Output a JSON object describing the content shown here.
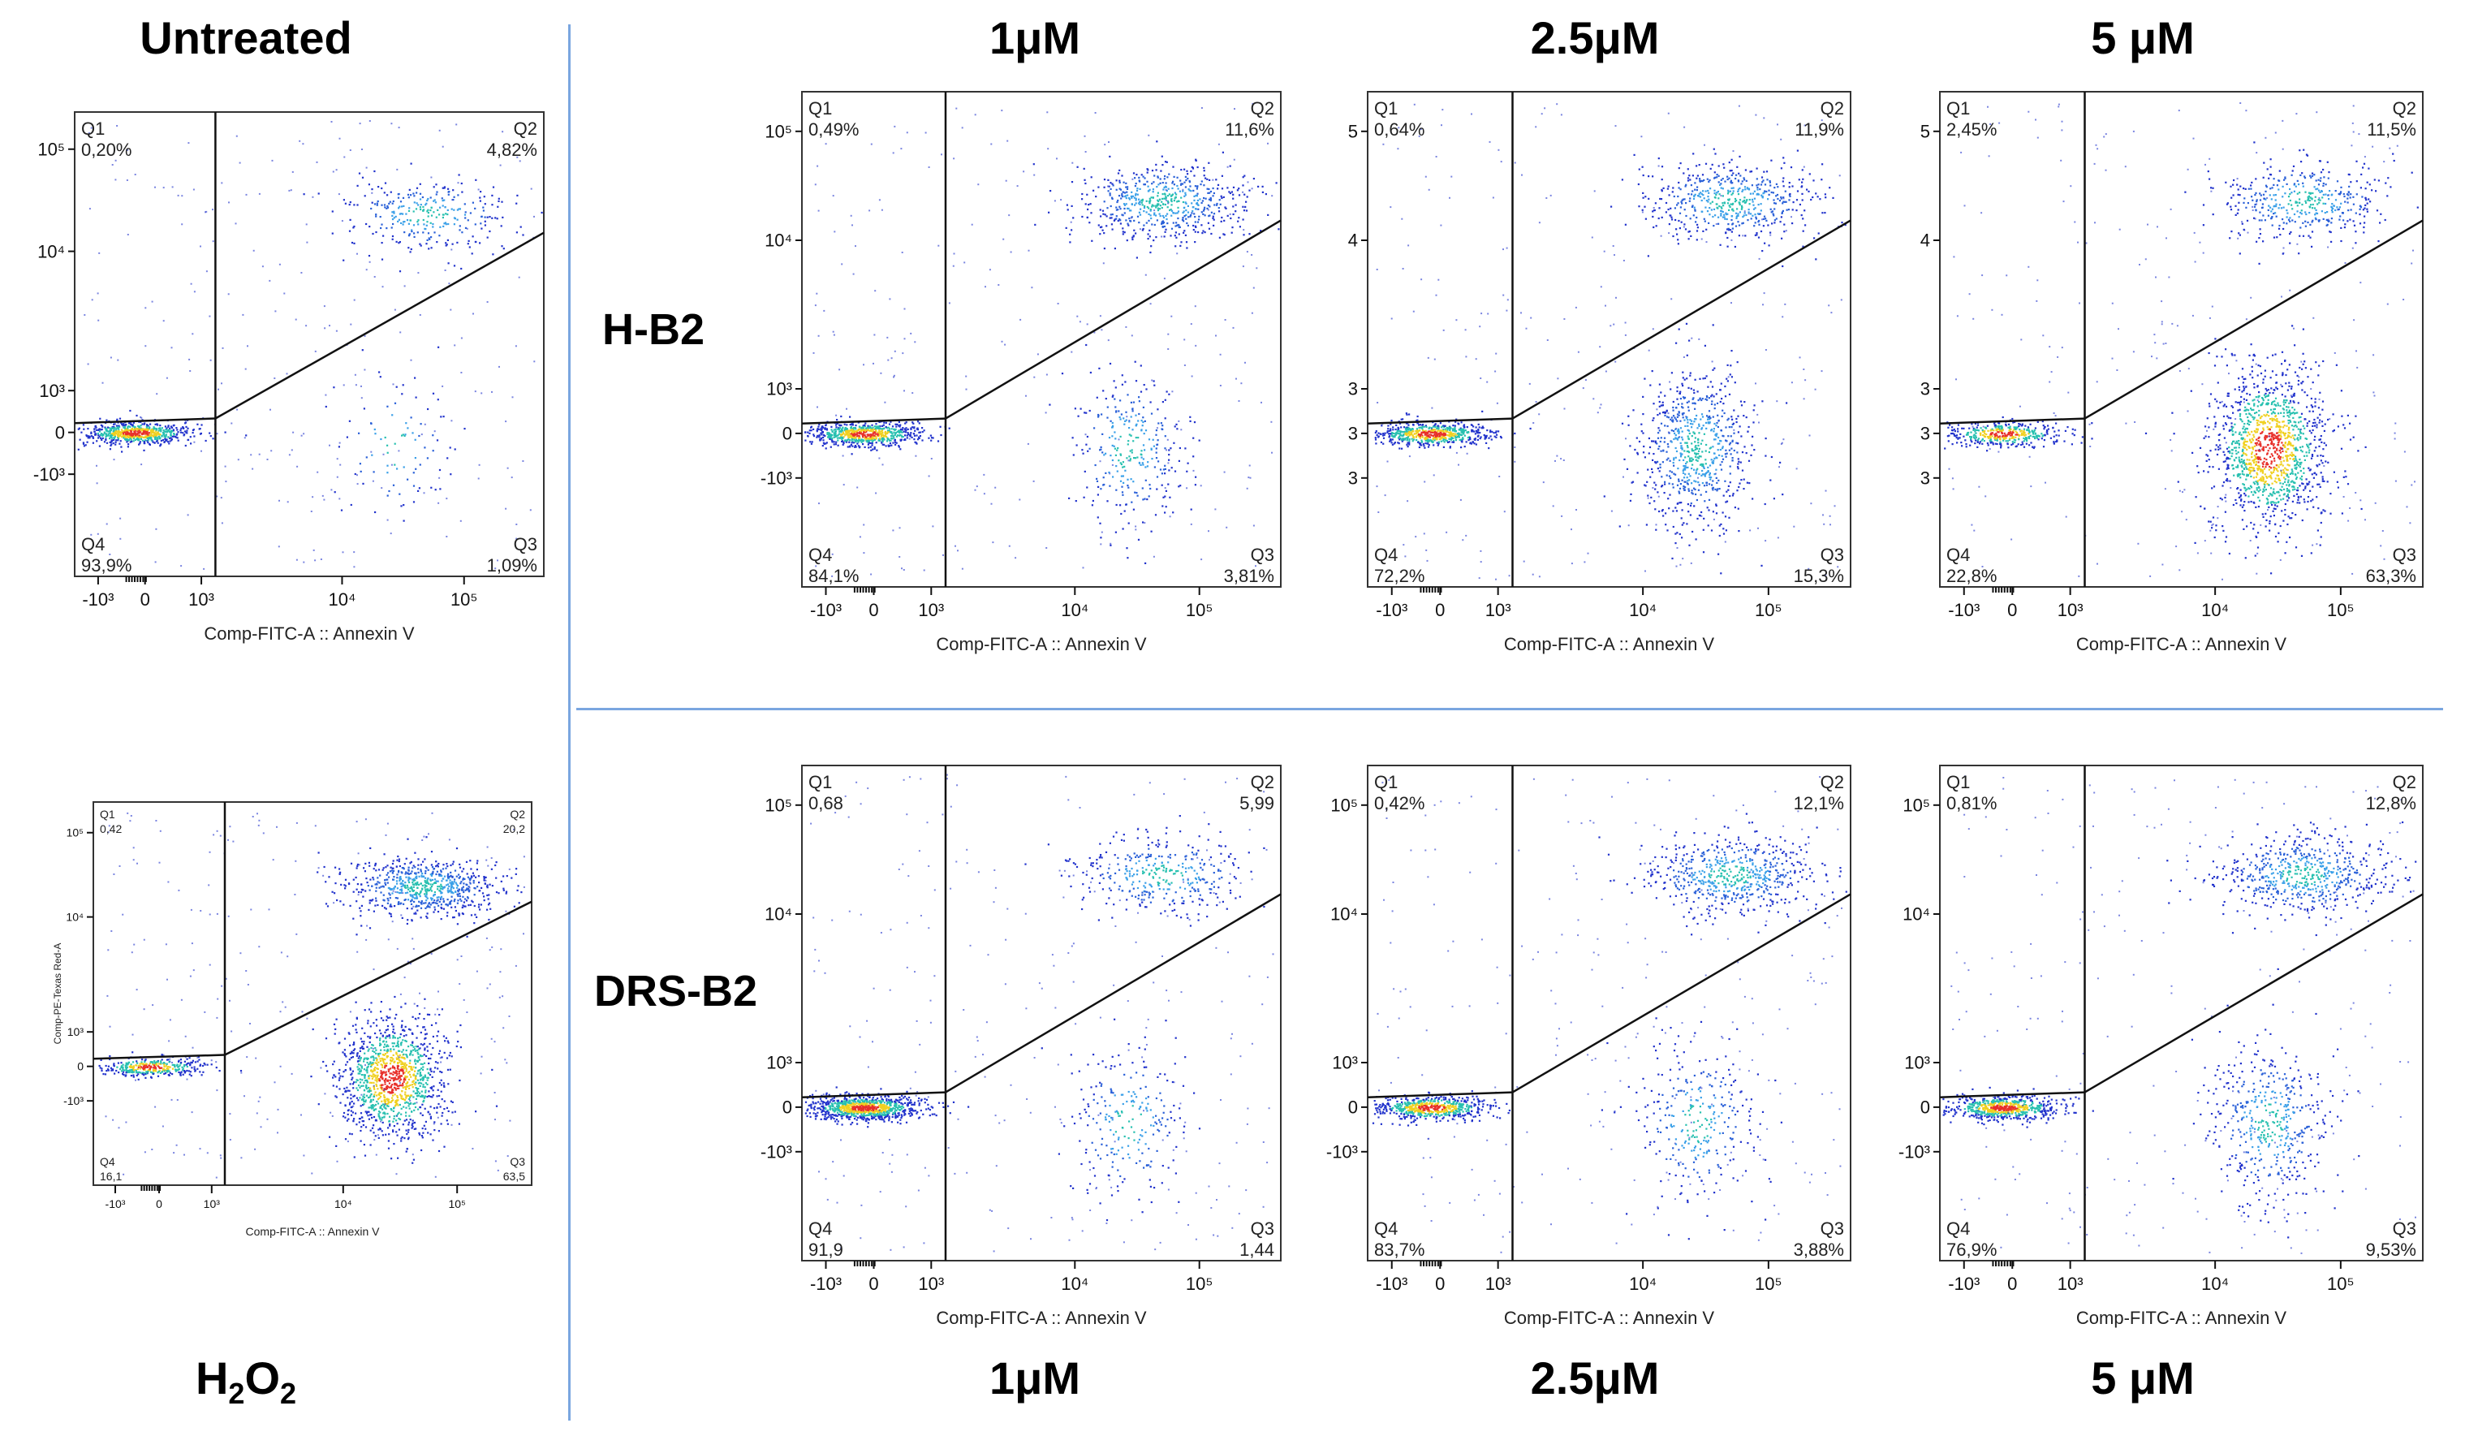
{
  "headers": {
    "untreated": "Untreated",
    "c1_top": "1μM",
    "c2_top": "2.5μM",
    "c3_top": "5 μM",
    "h2o2_main": "H",
    "h2o2_sub1": "2",
    "h2o2_mid": "O",
    "h2o2_sub2": "2",
    "c1_bottom": "1μM",
    "c2_bottom": "2.5μM",
    "c3_bottom": "5 μM"
  },
  "row_labels": {
    "top": "H-B2",
    "bottom": "DRS-B2"
  },
  "colors": {
    "divider": "#7aa6e0",
    "dots": "#2233cc",
    "hot": "#e8302a",
    "warm": "#f0d020",
    "mid": "#28c0b0"
  },
  "chart_data": [
    {
      "id": "untreated",
      "type": "scatter",
      "title": "Untreated",
      "xlabel": "Comp-FITC-A :: Annexin V",
      "ylabel": "",
      "x_ticks": [
        "-10³",
        "0",
        "10³",
        "10⁴",
        "10⁵"
      ],
      "y_ticks": [
        "10⁵",
        "10⁴",
        "10³",
        "0",
        "-10³"
      ],
      "quadrants": {
        "Q1": "0,20%",
        "Q2": "4,82%",
        "Q3": "1,09%",
        "Q4": "93,9%"
      },
      "populations": {
        "live": 1.0,
        "early": 0.15,
        "late": 0.5,
        "necrotic": 0.02
      }
    },
    {
      "id": "hb2_1",
      "type": "scatter",
      "title": "H-B2 1μM",
      "xlabel": "Comp-FITC-A :: Annexin V",
      "ylabel": "",
      "x_ticks": [
        "-10³",
        "0",
        "10³",
        "10⁴",
        "10⁵"
      ],
      "y_ticks": [
        "10⁵",
        "10⁴",
        "10³",
        "0",
        "-10³"
      ],
      "quadrants": {
        "Q1": "0,49%",
        "Q2": "11,6%",
        "Q3": "3,81%",
        "Q4": "84,1%"
      },
      "populations": {
        "live": 1.0,
        "early": 0.5,
        "late": 1.0,
        "necrotic": 0.05
      }
    },
    {
      "id": "hb2_25",
      "type": "scatter",
      "title": "H-B2 2.5μM",
      "xlabel": "Comp-FITC-A :: Annexin V",
      "ylabel": "",
      "x_ticks": [
        "-10³",
        "0",
        "10³",
        "10⁴",
        "10⁵"
      ],
      "y_ticks": [
        "5",
        "4",
        "3",
        "3",
        "3"
      ],
      "quadrants": {
        "Q1": "0,64%",
        "Q2": "11,9%",
        "Q3": "15,3%",
        "Q4": "72,2%"
      },
      "populations": {
        "live": 0.9,
        "early": 1.2,
        "late": 0.9,
        "necrotic": 0.05
      }
    },
    {
      "id": "hb2_5",
      "type": "scatter",
      "title": "H-B2 5 μM",
      "xlabel": "Comp-FITC-A :: Annexin V",
      "ylabel": "",
      "x_ticks": [
        "-10³",
        "0",
        "10³",
        "10⁴",
        "10⁵"
      ],
      "y_ticks": [
        "5",
        "4",
        "3",
        "3",
        "3"
      ],
      "quadrants": {
        "Q1": "2,45%",
        "Q2": "11,5%",
        "Q3": "63,3%",
        "Q4": "22,8%"
      },
      "populations": {
        "live": 0.6,
        "early": 2.2,
        "late": 0.7,
        "necrotic": 0.1
      }
    },
    {
      "id": "h2o2",
      "type": "scatter",
      "title": "H2O2",
      "xlabel": "Comp-FITC-A :: Annexin V",
      "ylabel": "Comp-PE-Texas Red-A",
      "x_ticks": [
        "-10³",
        "0",
        "10³",
        "10⁴",
        "10⁵"
      ],
      "y_ticks": [
        "10⁵",
        "10⁴",
        "10³",
        "0",
        "-10³"
      ],
      "quadrants": {
        "Q1": "0,42",
        "Q2": "20,2",
        "Q3": "63,5",
        "Q4": "16,1"
      },
      "populations": {
        "live": 0.5,
        "early": 2.0,
        "late": 1.2,
        "necrotic": 0.05
      }
    },
    {
      "id": "drs_1",
      "type": "scatter",
      "title": "DRS-B2 1μM",
      "xlabel": "Comp-FITC-A :: Annexin V",
      "ylabel": "",
      "x_ticks": [
        "-10³",
        "0",
        "10³",
        "10⁴",
        "10⁵"
      ],
      "y_ticks": [
        "10⁵",
        "10⁴",
        "10³",
        "0",
        "-10³"
      ],
      "quadrants": {
        "Q1": "0,68",
        "Q2": "5,99",
        "Q3": "1,44",
        "Q4": "91,9"
      },
      "populations": {
        "live": 1.3,
        "early": 0.4,
        "late": 0.6,
        "necrotic": 0.1
      }
    },
    {
      "id": "drs_25",
      "type": "scatter",
      "title": "DRS-B2 2.5μM",
      "xlabel": "Comp-FITC-A :: Annexin V",
      "ylabel": "",
      "x_ticks": [
        "-10³",
        "0",
        "10³",
        "10⁴",
        "10⁵"
      ],
      "y_ticks": [
        "10⁵",
        "10⁴",
        "10³",
        "0",
        "-10³"
      ],
      "quadrants": {
        "Q1": "0,42%",
        "Q2": "12,1%",
        "Q3": "3,88%",
        "Q4": "83,7%"
      },
      "populations": {
        "live": 0.9,
        "early": 0.5,
        "late": 1.0,
        "necrotic": 0.05
      }
    },
    {
      "id": "drs_5",
      "type": "scatter",
      "title": "DRS-B2 5 μM",
      "xlabel": "Comp-FITC-A :: Annexin V",
      "ylabel": "",
      "x_ticks": [
        "-10³",
        "0",
        "10³",
        "10⁴",
        "10⁵"
      ],
      "y_ticks": [
        "10⁵",
        "10⁴",
        "10³",
        "0",
        "-10³"
      ],
      "quadrants": {
        "Q1": "0,81%",
        "Q2": "12,8%",
        "Q3": "9,53%",
        "Q4": "76,9%"
      },
      "populations": {
        "live": 0.9,
        "early": 0.8,
        "late": 1.0,
        "necrotic": 0.05
      }
    }
  ]
}
